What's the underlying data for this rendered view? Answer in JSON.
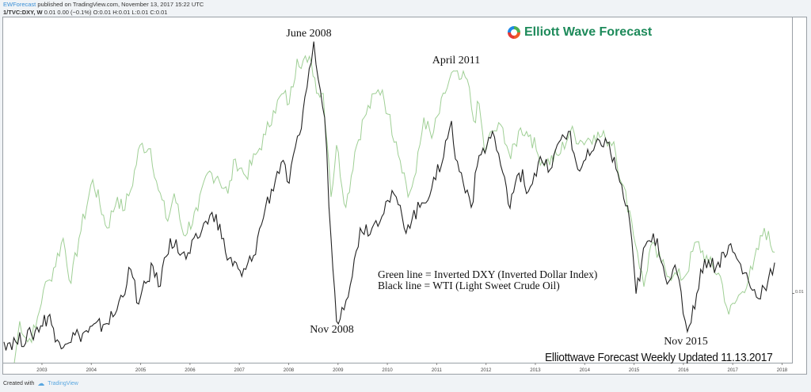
{
  "header": {
    "user": "EWForecast",
    "published": "published on TradingView.com, November 13, 2017 15:22 UTC",
    "symbol": "1/TVC:DXY, W",
    "quote": "0.01 0.00 (−0.1%) O:0.01 H:0.01 L:0.01 C:0.01"
  },
  "logo": {
    "text": "Elliott Wave Forecast",
    "color": "#1d8a5a"
  },
  "footer": {
    "created_with": "Created with",
    "brand": "TradingView"
  },
  "chart_data": {
    "type": "line",
    "title": "",
    "x_unit": "year",
    "xlim": [
      2002.23,
      2018.1
    ],
    "x_ticks": [
      "2003",
      "2004",
      "2005",
      "2006",
      "2007",
      "2008",
      "2009",
      "2010",
      "2011",
      "2012",
      "2013",
      "2014",
      "2015",
      "2016",
      "2017",
      "2018"
    ],
    "y_ticks": [
      "0.01"
    ],
    "y_scale_note": "relative level 0-100 (no printed scale)",
    "grid": false,
    "annotations": [
      {
        "text": "June 2008",
        "x": 2008.45
      },
      {
        "text": "Nov 2008",
        "x": 2008.85
      },
      {
        "text": "April 2011",
        "x": 2011.3
      },
      {
        "text": "Nov 2015",
        "x": 2016.05
      }
    ],
    "legend_lines": [
      "Green line = Inverted DXY (Inverted Dollar Index)",
      "Black line = WTI (Light Sweet Crude Oil)"
    ],
    "footer_note": "Elliottwave Forecast Weekly Updated 11.13.2017",
    "series": [
      {
        "name": "Inverted DXY",
        "color": "#9fcf95",
        "points": [
          [
            2002.44,
            0
          ],
          [
            2002.55,
            12
          ],
          [
            2002.71,
            6
          ],
          [
            2002.87,
            10
          ],
          [
            2003.03,
            21
          ],
          [
            2003.16,
            24
          ],
          [
            2003.43,
            36
          ],
          [
            2003.59,
            23
          ],
          [
            2003.75,
            36
          ],
          [
            2004.03,
            53
          ],
          [
            2004.32,
            39
          ],
          [
            2004.53,
            48
          ],
          [
            2004.64,
            44
          ],
          [
            2004.8,
            50
          ],
          [
            2004.99,
            63
          ],
          [
            2005.2,
            62
          ],
          [
            2005.36,
            50
          ],
          [
            2005.55,
            41
          ],
          [
            2005.68,
            49
          ],
          [
            2005.87,
            37
          ],
          [
            2006.16,
            44
          ],
          [
            2006.36,
            55
          ],
          [
            2006.56,
            54
          ],
          [
            2006.77,
            49
          ],
          [
            2006.92,
            59
          ],
          [
            2007.13,
            54
          ],
          [
            2007.37,
            61
          ],
          [
            2007.53,
            66
          ],
          [
            2007.69,
            73
          ],
          [
            2007.9,
            78
          ],
          [
            2008.01,
            75
          ],
          [
            2008.17,
            88
          ],
          [
            2008.38,
            87
          ],
          [
            2008.46,
            87
          ],
          [
            2008.6,
            78
          ],
          [
            2008.7,
            78
          ],
          [
            2008.81,
            59
          ],
          [
            2008.86,
            48
          ],
          [
            2008.97,
            63
          ],
          [
            2009.16,
            45
          ],
          [
            2009.34,
            61
          ],
          [
            2009.53,
            71
          ],
          [
            2009.77,
            78
          ],
          [
            2009.9,
            79
          ],
          [
            2010.01,
            72
          ],
          [
            2010.18,
            64
          ],
          [
            2010.34,
            55
          ],
          [
            2010.42,
            48
          ],
          [
            2010.58,
            55
          ],
          [
            2010.74,
            71
          ],
          [
            2010.9,
            65
          ],
          [
            2011.17,
            78
          ],
          [
            2011.3,
            84
          ],
          [
            2011.46,
            82
          ],
          [
            2011.62,
            82
          ],
          [
            2011.75,
            70
          ],
          [
            2011.86,
            75
          ],
          [
            2011.97,
            61
          ],
          [
            2012.13,
            67
          ],
          [
            2012.34,
            68
          ],
          [
            2012.5,
            59
          ],
          [
            2012.7,
            68
          ],
          [
            2012.9,
            66
          ],
          [
            2013.06,
            60
          ],
          [
            2013.22,
            58
          ],
          [
            2013.47,
            60
          ],
          [
            2013.71,
            67
          ],
          [
            2013.95,
            64
          ],
          [
            2014.19,
            66
          ],
          [
            2014.42,
            65
          ],
          [
            2014.59,
            64
          ],
          [
            2014.75,
            52
          ],
          [
            2014.91,
            44
          ],
          [
            2015.07,
            32
          ],
          [
            2015.2,
            22
          ],
          [
            2015.34,
            34
          ],
          [
            2015.55,
            29
          ],
          [
            2015.79,
            25
          ],
          [
            2016.03,
            25
          ],
          [
            2016.27,
            35
          ],
          [
            2016.51,
            29
          ],
          [
            2016.75,
            25
          ],
          [
            2016.92,
            14
          ],
          [
            2017.16,
            20
          ],
          [
            2017.4,
            27
          ],
          [
            2017.64,
            39
          ],
          [
            2017.85,
            32
          ]
        ]
      },
      {
        "name": "WTI",
        "color": "#222222",
        "points": [
          [
            2002.23,
            6
          ],
          [
            2002.47,
            6
          ],
          [
            2002.79,
            8
          ],
          [
            2003.16,
            14
          ],
          [
            2003.27,
            6
          ],
          [
            2003.75,
            8
          ],
          [
            2004.24,
            11
          ],
          [
            2004.48,
            14
          ],
          [
            2004.8,
            27
          ],
          [
            2004.96,
            17
          ],
          [
            2005.25,
            28
          ],
          [
            2005.36,
            22
          ],
          [
            2005.6,
            36
          ],
          [
            2005.92,
            30
          ],
          [
            2006.16,
            36
          ],
          [
            2006.32,
            41
          ],
          [
            2006.53,
            43
          ],
          [
            2006.72,
            32
          ],
          [
            2007.05,
            25
          ],
          [
            2007.29,
            31
          ],
          [
            2007.53,
            45
          ],
          [
            2007.85,
            58
          ],
          [
            2008.01,
            52
          ],
          [
            2008.22,
            66
          ],
          [
            2008.33,
            77
          ],
          [
            2008.46,
            87
          ],
          [
            2008.51,
            93
          ],
          [
            2008.6,
            82
          ],
          [
            2008.73,
            71
          ],
          [
            2008.86,
            36
          ],
          [
            2008.97,
            12
          ],
          [
            2009.08,
            16
          ],
          [
            2009.29,
            25
          ],
          [
            2009.45,
            39
          ],
          [
            2009.69,
            39
          ],
          [
            2010.01,
            47
          ],
          [
            2010.18,
            48
          ],
          [
            2010.34,
            39
          ],
          [
            2010.66,
            45
          ],
          [
            2010.98,
            53
          ],
          [
            2011.22,
            65
          ],
          [
            2011.3,
            70
          ],
          [
            2011.38,
            59
          ],
          [
            2011.62,
            50
          ],
          [
            2011.7,
            45
          ],
          [
            2011.86,
            60
          ],
          [
            2012.02,
            63
          ],
          [
            2012.13,
            67
          ],
          [
            2012.34,
            55
          ],
          [
            2012.45,
            46
          ],
          [
            2012.74,
            56
          ],
          [
            2012.82,
            49
          ],
          [
            2013.06,
            58
          ],
          [
            2013.3,
            56
          ],
          [
            2013.55,
            66
          ],
          [
            2013.67,
            67
          ],
          [
            2013.86,
            56
          ],
          [
            2014.1,
            60
          ],
          [
            2014.42,
            65
          ],
          [
            2014.67,
            55
          ],
          [
            2014.91,
            41
          ],
          [
            2015.04,
            20
          ],
          [
            2015.23,
            34
          ],
          [
            2015.47,
            36
          ],
          [
            2015.63,
            25
          ],
          [
            2015.87,
            26
          ],
          [
            2016.08,
            9
          ],
          [
            2016.27,
            20
          ],
          [
            2016.43,
            30
          ],
          [
            2016.67,
            28
          ],
          [
            2016.92,
            34
          ],
          [
            2017.24,
            26
          ],
          [
            2017.48,
            19
          ],
          [
            2017.72,
            24
          ],
          [
            2017.85,
            29
          ]
        ]
      }
    ]
  }
}
